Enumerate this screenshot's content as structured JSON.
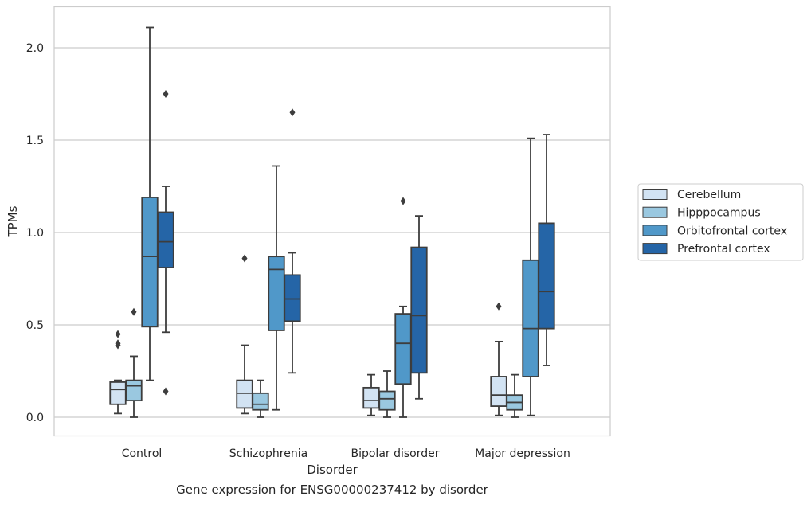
{
  "chart_data": {
    "type": "boxplot",
    "caption": "Gene expression for ENSG00000237412 by disorder",
    "xlabel": "Disorder",
    "ylabel": "TPMs",
    "ylim": [
      -0.1,
      2.22
    ],
    "yticks": [
      "0.0",
      "0.5",
      "1.0",
      "1.5",
      "2.0"
    ],
    "ytick_values": [
      0.0,
      0.5,
      1.0,
      1.5,
      2.0
    ],
    "grid": "horizontal",
    "legend_position": "right",
    "categories": [
      "Control",
      "Schizophrenia",
      "Bipolar disorder",
      "Major depression"
    ],
    "series": [
      {
        "name": "Cerebellum",
        "color": "#d2e3f3",
        "boxes": [
          {
            "whisker_low": 0.02,
            "q1": 0.07,
            "median": 0.15,
            "q3": 0.19,
            "whisker_high": 0.2,
            "outliers": [
              0.45,
              0.4,
              0.39
            ]
          },
          {
            "whisker_low": 0.02,
            "q1": 0.05,
            "median": 0.13,
            "q3": 0.2,
            "whisker_high": 0.39,
            "outliers": [
              0.86
            ]
          },
          {
            "whisker_low": 0.01,
            "q1": 0.05,
            "median": 0.09,
            "q3": 0.16,
            "whisker_high": 0.23,
            "outliers": []
          },
          {
            "whisker_low": 0.01,
            "q1": 0.06,
            "median": 0.12,
            "q3": 0.22,
            "whisker_high": 0.41,
            "outliers": [
              0.6
            ]
          }
        ]
      },
      {
        "name": "Hipppocampus",
        "color": "#9ac8e0",
        "boxes": [
          {
            "whisker_low": 0.0,
            "q1": 0.09,
            "median": 0.17,
            "q3": 0.2,
            "whisker_high": 0.33,
            "outliers": [
              0.57
            ]
          },
          {
            "whisker_low": 0.0,
            "q1": 0.04,
            "median": 0.07,
            "q3": 0.13,
            "whisker_high": 0.2,
            "outliers": []
          },
          {
            "whisker_low": 0.0,
            "q1": 0.04,
            "median": 0.1,
            "q3": 0.14,
            "whisker_high": 0.25,
            "outliers": []
          },
          {
            "whisker_low": 0.0,
            "q1": 0.04,
            "median": 0.08,
            "q3": 0.12,
            "whisker_high": 0.23,
            "outliers": []
          }
        ]
      },
      {
        "name": "Orbitofrontal cortex",
        "color": "#5098c9",
        "boxes": [
          {
            "whisker_low": 0.2,
            "q1": 0.49,
            "median": 0.87,
            "q3": 1.19,
            "whisker_high": 2.11,
            "outliers": []
          },
          {
            "whisker_low": 0.04,
            "q1": 0.47,
            "median": 0.8,
            "q3": 0.87,
            "whisker_high": 1.36,
            "outliers": []
          },
          {
            "whisker_low": 0.0,
            "q1": 0.18,
            "median": 0.4,
            "q3": 0.56,
            "whisker_high": 0.6,
            "outliers": [
              1.17
            ]
          },
          {
            "whisker_low": 0.01,
            "q1": 0.22,
            "median": 0.48,
            "q3": 0.85,
            "whisker_high": 1.51,
            "outliers": []
          }
        ]
      },
      {
        "name": "Prefrontal cortex",
        "color": "#2565a7",
        "boxes": [
          {
            "whisker_low": 0.46,
            "q1": 0.81,
            "median": 0.95,
            "q3": 1.11,
            "whisker_high": 1.25,
            "outliers": [
              1.75,
              0.14
            ]
          },
          {
            "whisker_low": 0.24,
            "q1": 0.52,
            "median": 0.64,
            "q3": 0.77,
            "whisker_high": 0.89,
            "outliers": [
              1.65
            ]
          },
          {
            "whisker_low": 0.1,
            "q1": 0.24,
            "median": 0.55,
            "q3": 0.92,
            "whisker_high": 1.09,
            "outliers": []
          },
          {
            "whisker_low": 0.28,
            "q1": 0.48,
            "median": 0.68,
            "q3": 1.05,
            "whisker_high": 1.53,
            "outliers": []
          }
        ]
      }
    ]
  }
}
